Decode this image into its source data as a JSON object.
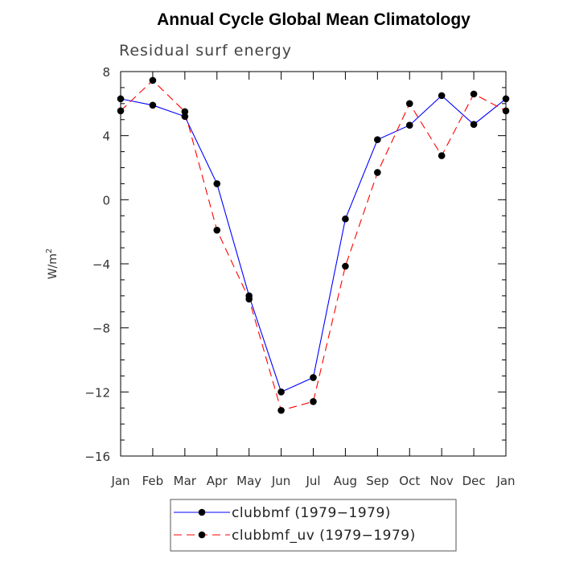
{
  "chart_data": {
    "type": "line",
    "title": "Annual Cycle Global Mean Climatology",
    "subtitle": "Residual surf energy",
    "ylabel": "W/m",
    "ylabel_superscript": "2",
    "xlabel": "",
    "categories": [
      "Jan",
      "Feb",
      "Mar",
      "Apr",
      "May",
      "Jun",
      "Jul",
      "Aug",
      "Sep",
      "Oct",
      "Nov",
      "Dec",
      "Jan"
    ],
    "ylim": [
      -16,
      8
    ],
    "yticks": [
      -16,
      -12,
      -8,
      -4,
      0,
      4,
      8
    ],
    "ytick_labels": [
      "−16",
      "−12",
      "−8",
      "−4",
      "0",
      "4",
      "8"
    ],
    "series": [
      {
        "name": "clubbmf (1979−1979)",
        "color": "#0000ff",
        "dash": "solid",
        "values": [
          6.3,
          5.9,
          5.2,
          1.0,
          -6.0,
          -12.0,
          -11.1,
          -1.2,
          3.75,
          4.65,
          6.5,
          4.7,
          6.3
        ]
      },
      {
        "name": "clubbmf_uv (1979−1979)",
        "color": "#ff0000",
        "dash": "dashed",
        "values": [
          5.55,
          7.45,
          5.5,
          -1.9,
          -6.2,
          -13.15,
          -12.6,
          -4.15,
          1.7,
          6.0,
          2.75,
          6.6,
          5.55
        ]
      }
    ],
    "legend": "bottom-center"
  }
}
